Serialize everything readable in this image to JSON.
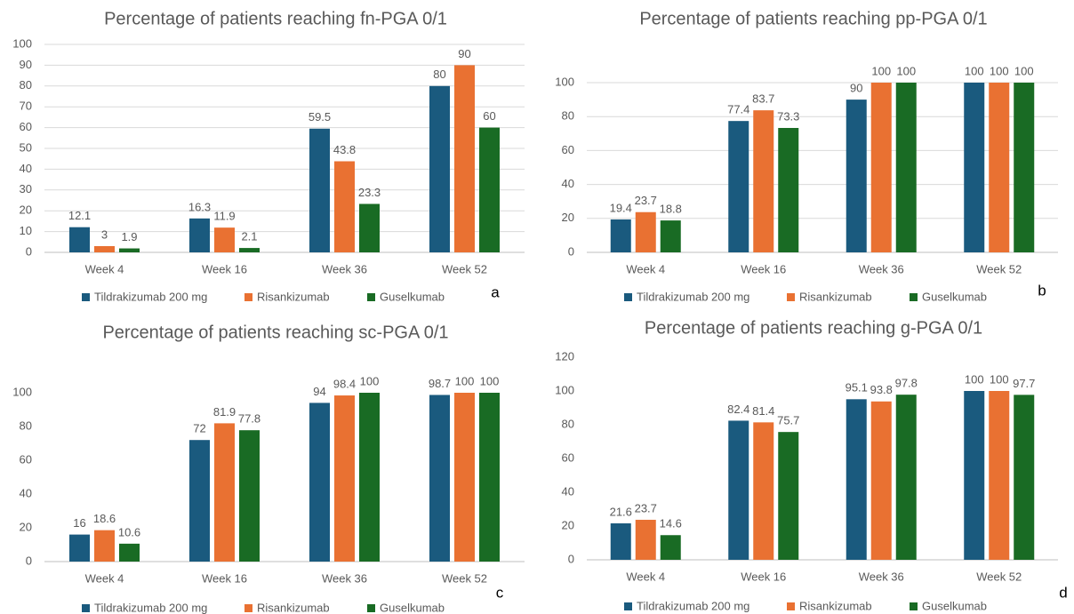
{
  "chart_data": [
    {
      "type": "bar",
      "title": "Percentage of patients reaching fn-PGA 0/1",
      "panel_label": "a",
      "categories": [
        "Week 4",
        "Week 16",
        "Week 36",
        "Week 52"
      ],
      "series": [
        {
          "name": "Tildrakizumab 200 mg",
          "color": "#1a5a7e",
          "values": [
            12.1,
            16.3,
            59.5,
            80
          ]
        },
        {
          "name": "Risankizumab",
          "color": "#e97132",
          "values": [
            3,
            11.9,
            43.8,
            90
          ]
        },
        {
          "name": "Guselkumab",
          "color": "#196b24",
          "values": [
            1.9,
            2.1,
            23.3,
            60
          ]
        }
      ],
      "ylim": [
        0,
        100
      ],
      "yticks": [
        0,
        10,
        20,
        30,
        40,
        50,
        60,
        70,
        80,
        90,
        100
      ],
      "grid": true,
      "legend": "bottom"
    },
    {
      "type": "bar",
      "title": "Percentage of patients reaching pp-PGA 0/1",
      "panel_label": "b",
      "categories": [
        "Week 4",
        "Week 16",
        "Week 36",
        "Week 52"
      ],
      "series": [
        {
          "name": "Tildrakizumab 200 mg",
          "color": "#1a5a7e",
          "values": [
            19.4,
            77.4,
            90,
            100
          ]
        },
        {
          "name": "Risankizumab",
          "color": "#e97132",
          "values": [
            23.7,
            83.7,
            100,
            100
          ]
        },
        {
          "name": "Guselkumab",
          "color": "#196b24",
          "values": [
            18.8,
            73.3,
            100,
            100
          ]
        }
      ],
      "ylim": [
        0,
        100
      ],
      "yticks": [
        0,
        20,
        40,
        60,
        80,
        100
      ],
      "grid": true,
      "legend": "bottom"
    },
    {
      "type": "bar",
      "title": "Percentage of patients reaching sc-PGA 0/1",
      "panel_label": "c",
      "categories": [
        "Week 4",
        "Week 16",
        "Week 36",
        "Week 52"
      ],
      "series": [
        {
          "name": "Tildrakizumab 200 mg",
          "color": "#1a5a7e",
          "values": [
            16,
            72,
            94,
            98.7
          ]
        },
        {
          "name": "Risankizumab",
          "color": "#e97132",
          "values": [
            18.6,
            81.9,
            98.4,
            100
          ]
        },
        {
          "name": "Guselkumab",
          "color": "#196b24",
          "values": [
            10.6,
            77.8,
            100,
            100
          ]
        }
      ],
      "ylim": [
        0,
        100
      ],
      "yticks": [
        0,
        20,
        40,
        60,
        80,
        100
      ],
      "grid": false,
      "legend": "bottom"
    },
    {
      "type": "bar",
      "title": "Percentage of patients reaching g-PGA 0/1",
      "panel_label": "d",
      "categories": [
        "Week 4",
        "Week 16",
        "Week 36",
        "Week 52"
      ],
      "series": [
        {
          "name": "Tildrakizumab 200 mg",
          "color": "#1a5a7e",
          "values": [
            21.6,
            82.4,
            95.1,
            100
          ]
        },
        {
          "name": "Risankizumab",
          "color": "#e97132",
          "values": [
            23.7,
            81.4,
            93.8,
            100
          ]
        },
        {
          "name": "Guselkumab",
          "color": "#196b24",
          "values": [
            14.6,
            75.7,
            97.8,
            97.7
          ]
        }
      ],
      "ylim": [
        0,
        120
      ],
      "yticks": [
        0,
        20,
        40,
        60,
        80,
        100,
        120
      ],
      "grid": false,
      "legend": "bottom"
    }
  ]
}
